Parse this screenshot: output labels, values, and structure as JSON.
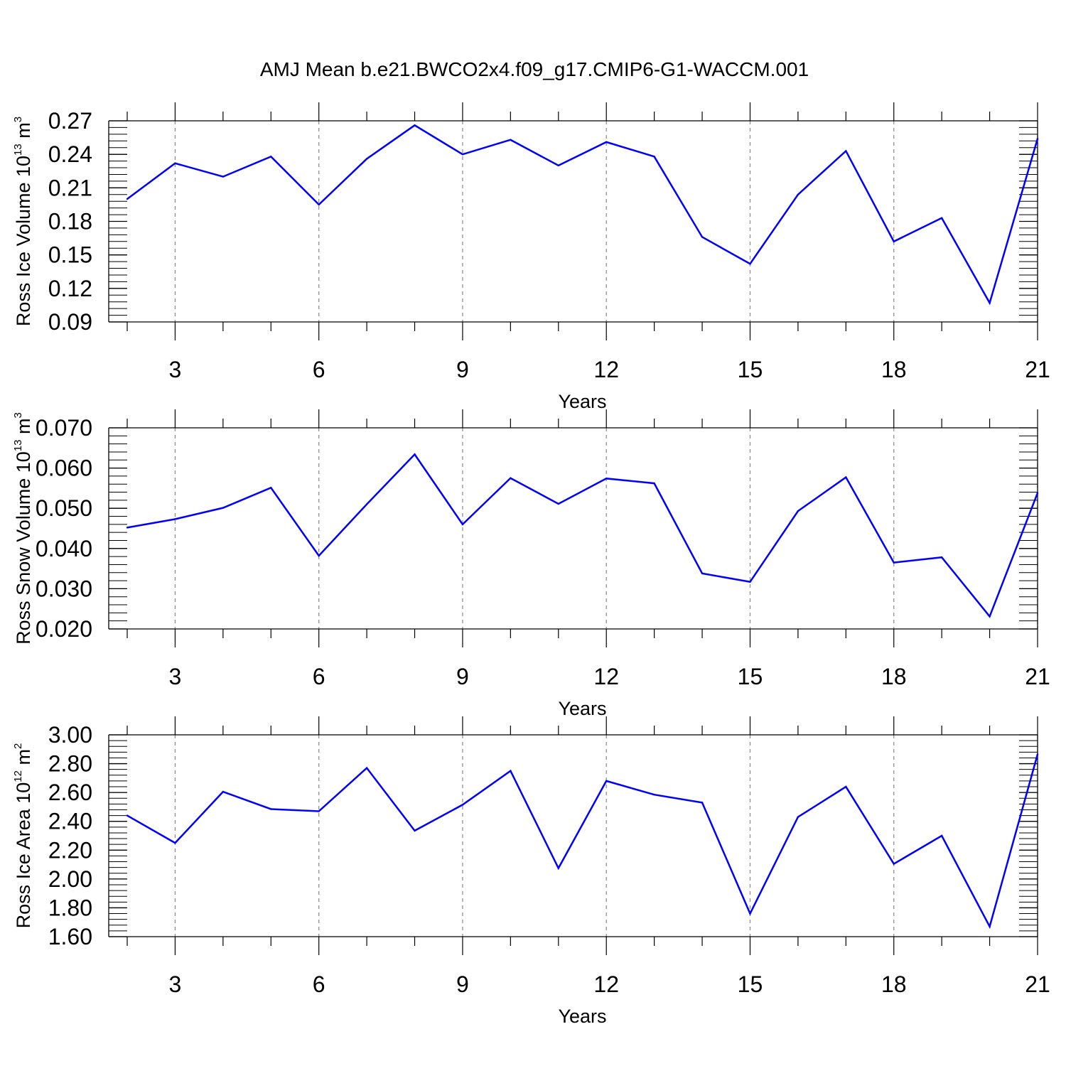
{
  "title": "AMJ Mean b.e21.BWCO2x4.f09_g17.CMIP6-G1-WACCM.001",
  "colors": {
    "line": "#0000ff",
    "axis": "#000000",
    "grid": "#888888"
  },
  "chart_data": [
    {
      "type": "line",
      "xlabel": "Years",
      "ylabel": {
        "text": "Ross Ice Volume 10",
        "sup": "13",
        "unit": " m",
        "unit_sup": "3"
      },
      "xlim": [
        2,
        21
      ],
      "ylim": [
        0.09,
        0.27
      ],
      "xticks": [
        3,
        6,
        9,
        12,
        15,
        18,
        21
      ],
      "yticks": [
        0.09,
        0.12,
        0.15,
        0.18,
        0.21,
        0.24,
        0.27
      ],
      "ytick_labels": [
        "0.09",
        "0.12",
        "0.15",
        "0.18",
        "0.21",
        "0.24",
        "0.27"
      ],
      "y_minor_step": 0.006,
      "grid": "vertical dashed at major x ticks",
      "x": [
        2,
        3,
        4,
        5,
        6,
        7,
        8,
        9,
        10,
        11,
        12,
        13,
        14,
        15,
        16,
        17,
        18,
        19,
        20,
        21
      ],
      "values": [
        0.2,
        0.232,
        0.22,
        0.238,
        0.195,
        0.236,
        0.266,
        0.24,
        0.253,
        0.23,
        0.251,
        0.238,
        0.166,
        0.142,
        0.204,
        0.243,
        0.162,
        0.183,
        0.107,
        0.254
      ]
    },
    {
      "type": "line",
      "xlabel": "Years",
      "ylabel": {
        "text": "Ross Snow Volume 10",
        "sup": "13",
        "unit": " m",
        "unit_sup": "3"
      },
      "xlim": [
        2,
        21
      ],
      "ylim": [
        0.02,
        0.07
      ],
      "xticks": [
        3,
        6,
        9,
        12,
        15,
        18,
        21
      ],
      "yticks": [
        0.02,
        0.03,
        0.04,
        0.05,
        0.06,
        0.07
      ],
      "ytick_labels": [
        "0.020",
        "0.030",
        "0.040",
        "0.050",
        "0.060",
        "0.070"
      ],
      "y_minor_step": 0.002,
      "grid": "vertical dashed at major x ticks",
      "x": [
        2,
        3,
        4,
        5,
        6,
        7,
        8,
        9,
        10,
        11,
        12,
        13,
        14,
        15,
        16,
        17,
        18,
        19,
        20,
        21
      ],
      "values": [
        0.0452,
        0.0473,
        0.0501,
        0.0551,
        0.0382,
        0.051,
        0.0634,
        0.046,
        0.0575,
        0.0511,
        0.0574,
        0.0562,
        0.0338,
        0.0317,
        0.0493,
        0.0577,
        0.0365,
        0.0378,
        0.0231,
        0.0538
      ]
    },
    {
      "type": "line",
      "xlabel": "Years",
      "ylabel": {
        "text": "Ross Ice Area 10",
        "sup": "12",
        "unit": " m",
        "unit_sup": "2"
      },
      "xlim": [
        2,
        21
      ],
      "ylim": [
        1.6,
        3.0
      ],
      "xticks": [
        3,
        6,
        9,
        12,
        15,
        18,
        21
      ],
      "yticks": [
        1.6,
        1.8,
        2.0,
        2.2,
        2.4,
        2.6,
        2.8,
        3.0
      ],
      "ytick_labels": [
        "1.60",
        "1.80",
        "2.00",
        "2.20",
        "2.40",
        "2.60",
        "2.80",
        "3.00"
      ],
      "y_minor_step": 0.04,
      "grid": "vertical dashed at major x ticks",
      "x": [
        2,
        3,
        4,
        5,
        6,
        7,
        8,
        9,
        10,
        11,
        12,
        13,
        14,
        15,
        16,
        17,
        18,
        19,
        20,
        21
      ],
      "values": [
        2.44,
        2.25,
        2.605,
        2.485,
        2.47,
        2.77,
        2.335,
        2.515,
        2.75,
        2.075,
        2.68,
        2.585,
        2.53,
        1.76,
        2.43,
        2.64,
        2.105,
        2.3,
        1.67,
        2.865
      ]
    }
  ]
}
